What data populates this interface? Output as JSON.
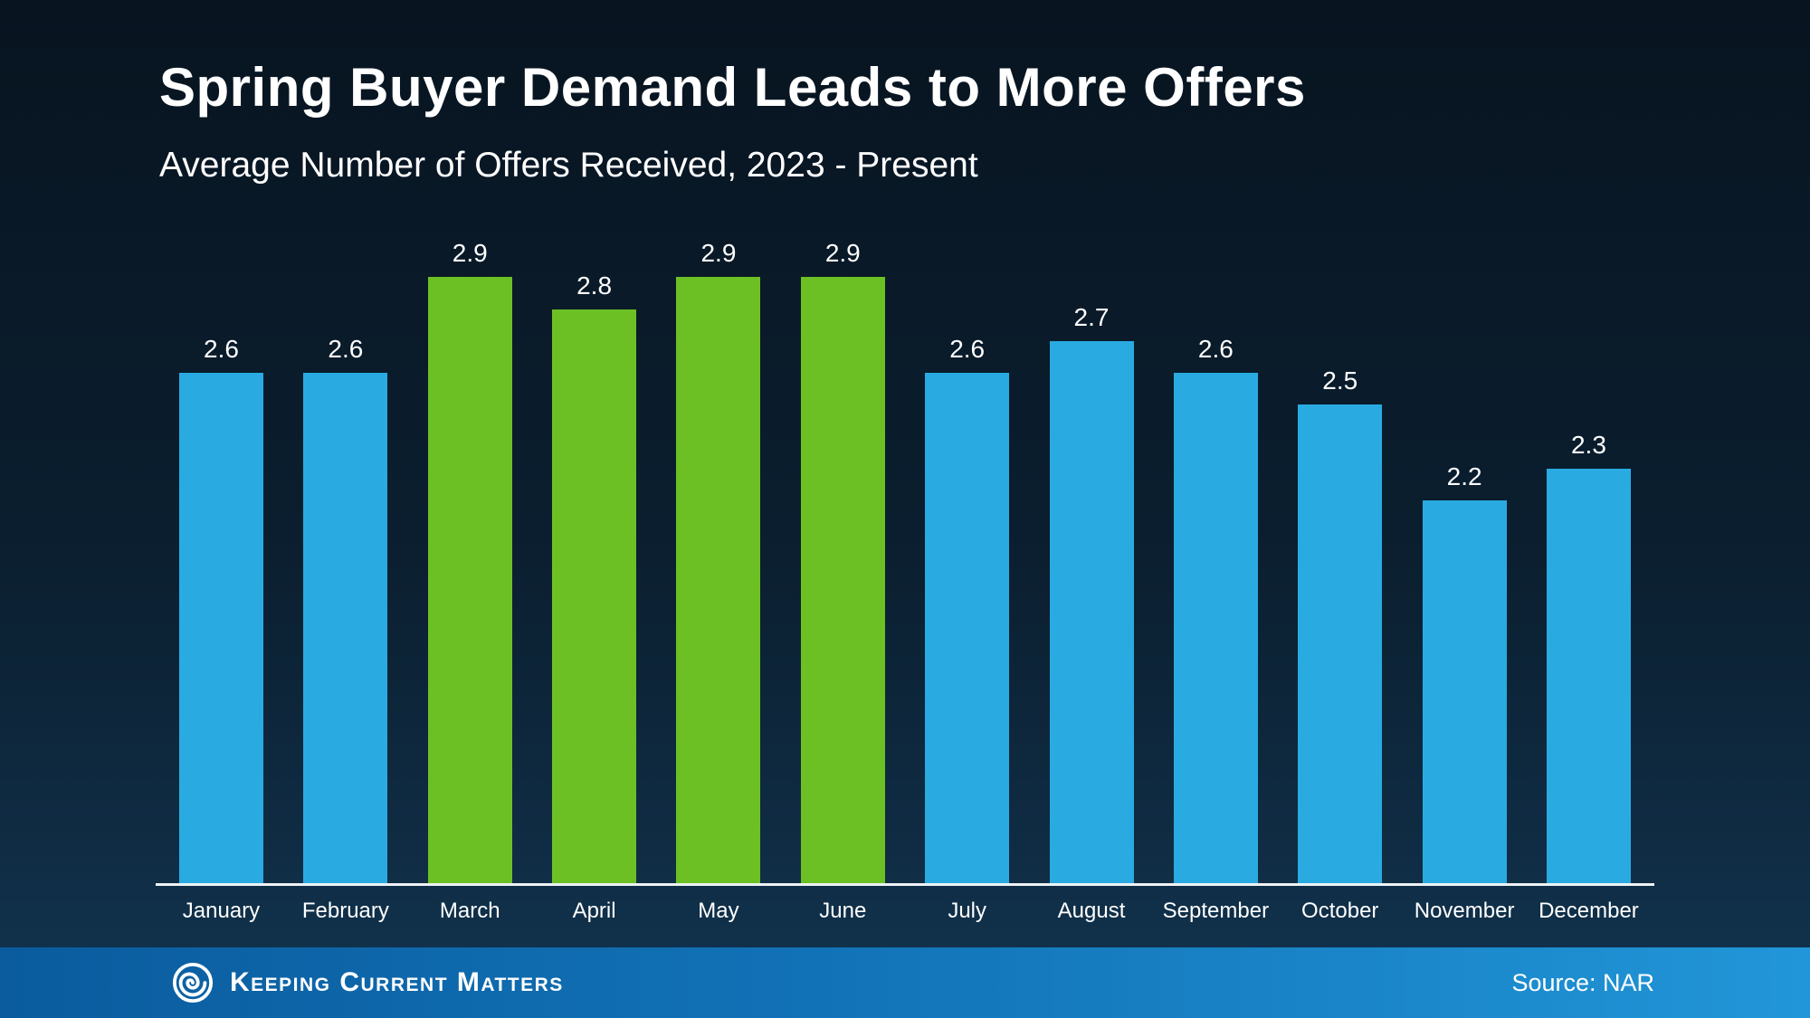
{
  "page": {
    "title": "Spring Buyer Demand Leads to More Offers",
    "subtitle": "Average Number of Offers Received, 2023 - Present"
  },
  "chart_data": {
    "type": "bar",
    "title": "Spring Buyer Demand Leads to More Offers",
    "subtitle": "Average Number of Offers Received, 2023 - Present",
    "categories": [
      "January",
      "February",
      "March",
      "April",
      "May",
      "June",
      "July",
      "August",
      "September",
      "October",
      "November",
      "December"
    ],
    "values": [
      2.6,
      2.6,
      2.9,
      2.8,
      2.9,
      2.9,
      2.6,
      2.7,
      2.6,
      2.5,
      2.2,
      2.3
    ],
    "value_labels": [
      "2.6",
      "2.6",
      "2.9",
      "2.8",
      "2.9",
      "2.9",
      "2.6",
      "2.7",
      "2.6",
      "2.5",
      "2.2",
      "2.3"
    ],
    "highlight_categories": [
      "March",
      "April",
      "May",
      "June"
    ],
    "bar_colors": {
      "default": "#29ABE2",
      "highlight": "#6CC024"
    },
    "xlabel": "",
    "ylabel": "",
    "ylim": [
      1.0,
      3.0
    ],
    "grid": false,
    "legend": false
  },
  "footer": {
    "brand": "Keeping Current Matters",
    "source": "Source: NAR",
    "colors": {
      "bar_start": "#0a5c9e",
      "bar_end": "#2196d8",
      "text": "#ffffff"
    }
  },
  "colors": {
    "background_top": "#081420",
    "background_bottom": "#123450",
    "text": "#ffffff",
    "axis_line": "#eef3f6"
  }
}
